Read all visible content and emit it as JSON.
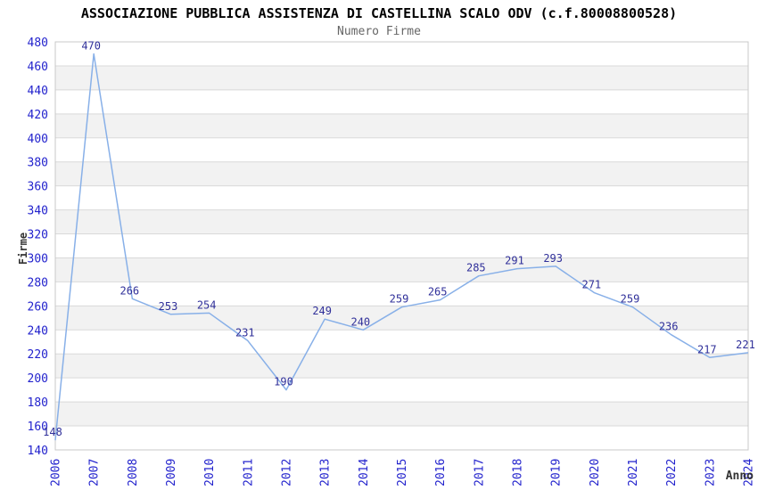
{
  "chart_data": {
    "type": "line",
    "title": "ASSOCIAZIONE PUBBLICA ASSISTENZA DI CASTELLINA SCALO ODV (c.f.80008800528)",
    "subtitle": "Numero Firme",
    "xlabel": "Anno",
    "ylabel": "Firme",
    "categories": [
      "2006",
      "2007",
      "2008",
      "2009",
      "2010",
      "2011",
      "2012",
      "2013",
      "2014",
      "2015",
      "2016",
      "2017",
      "2018",
      "2019",
      "2020",
      "2021",
      "2022",
      "2023",
      "2024"
    ],
    "values": [
      148,
      470,
      266,
      253,
      254,
      231,
      190,
      249,
      240,
      259,
      265,
      285,
      291,
      293,
      271,
      259,
      236,
      217,
      221
    ],
    "ylim": [
      140,
      480
    ],
    "ytick_step": 20,
    "grid": "horizontal-bands",
    "legend": "none",
    "colors": {
      "line": "#88b0e8",
      "tick_labels": "#2323cd",
      "value_labels": "#30309a",
      "band": "#f2f2f2",
      "gridline": "#d9d9d9",
      "border": "#c9c9c9",
      "title": "#000000",
      "subtitle": "#666666",
      "axis_titles": "#333333"
    }
  }
}
